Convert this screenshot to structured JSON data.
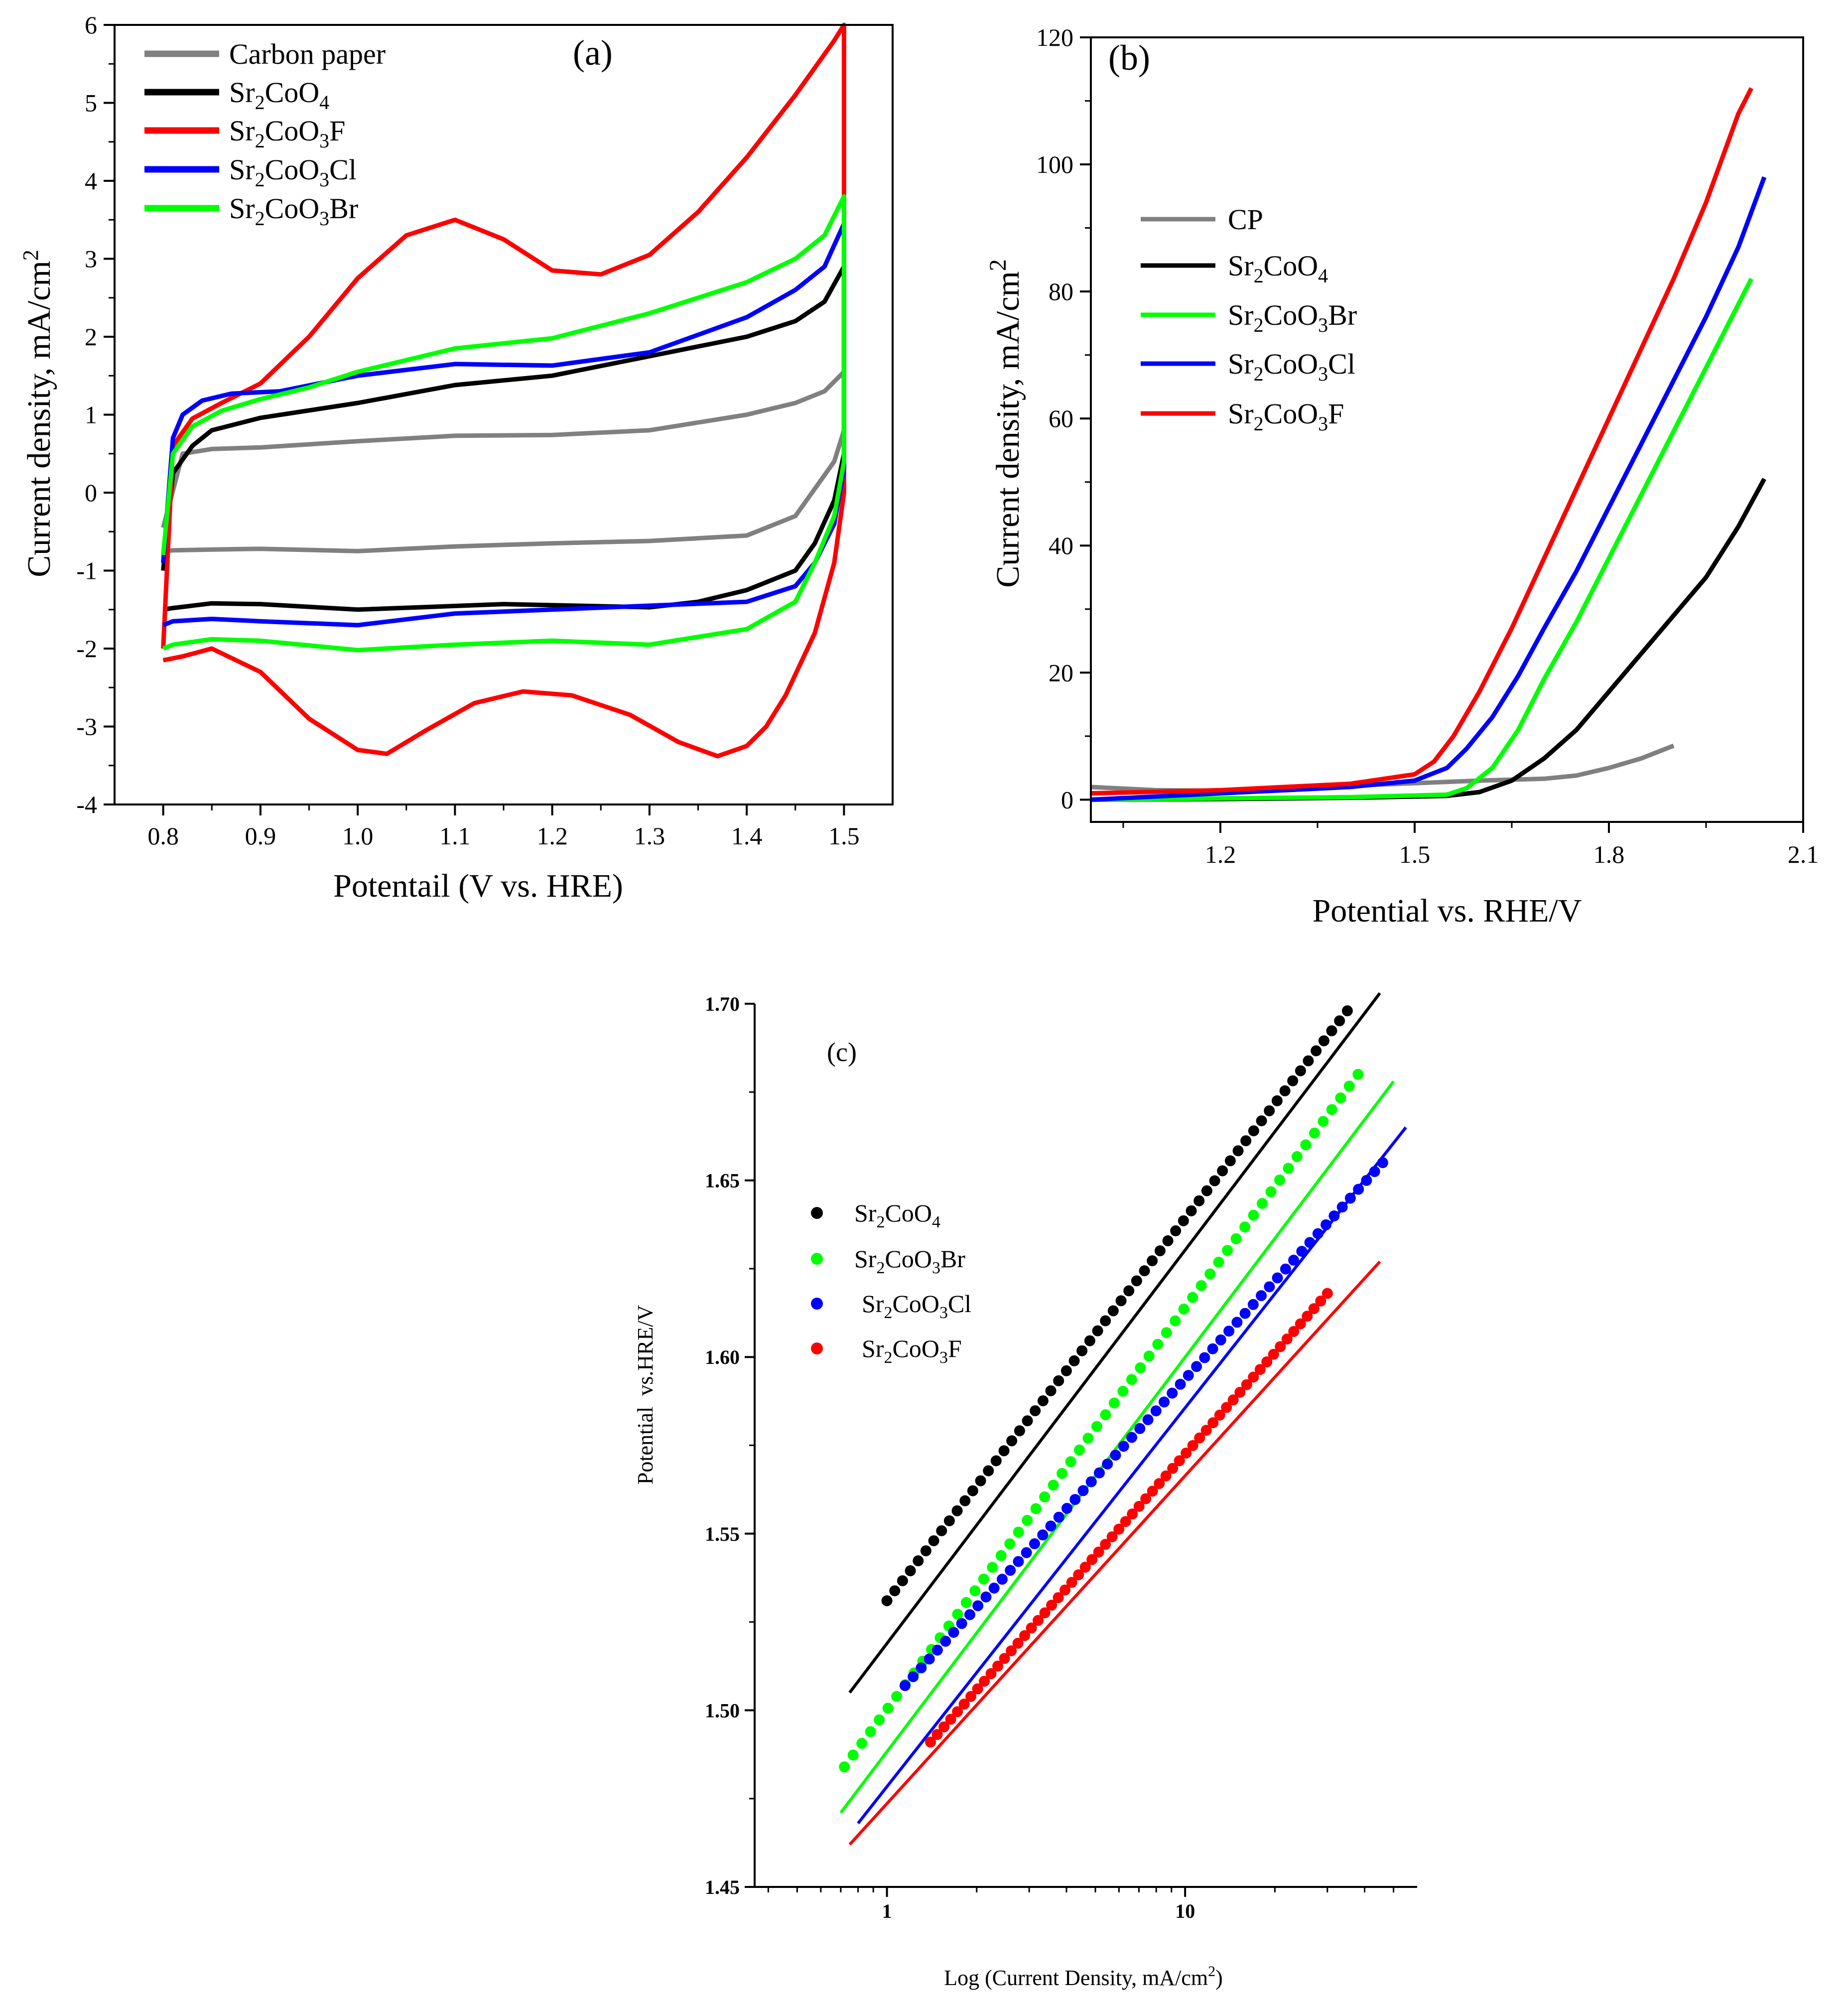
{
  "chart_data": [
    {
      "id": "a",
      "type": "line",
      "panel_label": "(a)",
      "xlabel": "Potentail (V vs. HRE)",
      "ylabel": "Current density, mA/cm²",
      "xlim": [
        0.75,
        1.55
      ],
      "ylim": [
        -4,
        6
      ],
      "xticks": [
        "0.8",
        "0.9",
        "1.0",
        "1.1",
        "1.2",
        "1.3",
        "1.4",
        "1.5"
      ],
      "yticks": [
        "-4",
        "-3",
        "-2",
        "-1",
        "0",
        "1",
        "2",
        "3",
        "4",
        "5",
        "6"
      ],
      "legend_position": "top-left",
      "series": [
        {
          "name": "Carbon paper",
          "color": "#808080",
          "x": [
            0.8,
            0.82,
            0.85,
            0.9,
            1.0,
            1.1,
            1.2,
            1.3,
            1.4,
            1.45,
            1.48,
            1.5,
            1.5,
            1.49,
            1.47,
            1.45,
            1.4,
            1.3,
            1.2,
            1.1,
            1.0,
            0.9,
            0.85,
            0.81,
            0.8
          ],
          "y": [
            -0.45,
            0.5,
            0.56,
            0.58,
            0.66,
            0.73,
            0.74,
            0.8,
            1.0,
            1.15,
            1.3,
            1.55,
            0.8,
            0.4,
            0.05,
            -0.3,
            -0.55,
            -0.62,
            -0.65,
            -0.69,
            -0.75,
            -0.72,
            -0.73,
            -0.74,
            -0.75
          ]
        },
        {
          "name": "Sr₂CoO₄",
          "color": "#000000",
          "x": [
            0.8,
            0.81,
            0.83,
            0.85,
            0.9,
            1.0,
            1.1,
            1.2,
            1.3,
            1.4,
            1.45,
            1.48,
            1.5,
            1.5,
            1.49,
            1.47,
            1.45,
            1.4,
            1.35,
            1.3,
            1.15,
            1.0,
            0.9,
            0.85,
            0.81,
            0.8
          ],
          "y": [
            -1.0,
            0.25,
            0.6,
            0.8,
            0.96,
            1.15,
            1.38,
            1.5,
            1.75,
            2.0,
            2.2,
            2.45,
            2.9,
            0.5,
            -0.1,
            -0.65,
            -1.0,
            -1.25,
            -1.4,
            -1.47,
            -1.43,
            -1.5,
            -1.43,
            -1.42,
            -1.48,
            -1.5
          ]
        },
        {
          "name": "Sr₂CoO₃F",
          "color": "#ff0000",
          "x": [
            0.8,
            0.81,
            0.83,
            0.86,
            0.9,
            0.95,
            1.0,
            1.05,
            1.1,
            1.15,
            1.2,
            1.25,
            1.3,
            1.35,
            1.4,
            1.45,
            1.49,
            1.5,
            1.5,
            1.49,
            1.47,
            1.44,
            1.42,
            1.4,
            1.37,
            1.33,
            1.28,
            1.22,
            1.17,
            1.12,
            1.07,
            1.03,
            1.0,
            0.95,
            0.9,
            0.85,
            0.82,
            0.8
          ],
          "y": [
            -2.0,
            0.6,
            0.95,
            1.15,
            1.4,
            2.0,
            2.75,
            3.3,
            3.5,
            3.25,
            2.85,
            2.8,
            3.05,
            3.6,
            4.3,
            5.1,
            5.8,
            6.0,
            0.0,
            -0.9,
            -1.8,
            -2.6,
            -3.0,
            -3.25,
            -3.38,
            -3.2,
            -2.85,
            -2.6,
            -2.55,
            -2.7,
            -3.05,
            -3.35,
            -3.3,
            -2.9,
            -2.3,
            -2.0,
            -2.1,
            -2.15
          ]
        },
        {
          "name": "Sr₂CoO₃Cl",
          "color": "#0000ff",
          "x": [
            0.8,
            0.81,
            0.82,
            0.84,
            0.87,
            0.92,
            1.0,
            1.1,
            1.2,
            1.3,
            1.4,
            1.45,
            1.48,
            1.5,
            1.5,
            1.49,
            1.47,
            1.45,
            1.4,
            1.3,
            1.2,
            1.1,
            1.0,
            0.9,
            0.85,
            0.81,
            0.8
          ],
          "y": [
            -0.9,
            0.7,
            1.0,
            1.18,
            1.27,
            1.3,
            1.5,
            1.65,
            1.63,
            1.8,
            2.25,
            2.6,
            2.9,
            3.45,
            0.3,
            -0.4,
            -0.9,
            -1.2,
            -1.4,
            -1.45,
            -1.5,
            -1.55,
            -1.7,
            -1.65,
            -1.62,
            -1.65,
            -1.7
          ]
        },
        {
          "name": "Sr₂CoO₃Br",
          "color": "#00ff00",
          "x": [
            0.8,
            0.81,
            0.83,
            0.86,
            0.9,
            0.95,
            1.0,
            1.1,
            1.2,
            1.3,
            1.4,
            1.45,
            1.48,
            1.5,
            1.5,
            1.49,
            1.47,
            1.45,
            1.4,
            1.3,
            1.2,
            1.1,
            1.0,
            0.9,
            0.85,
            0.81,
            0.8
          ],
          "y": [
            -0.8,
            0.5,
            0.85,
            1.05,
            1.2,
            1.35,
            1.55,
            1.85,
            1.98,
            2.3,
            2.7,
            3.0,
            3.3,
            3.8,
            0.4,
            -0.3,
            -0.9,
            -1.4,
            -1.75,
            -1.95,
            -1.9,
            -1.95,
            -2.02,
            -1.9,
            -1.88,
            -1.95,
            -2.0
          ]
        }
      ]
    },
    {
      "id": "b",
      "type": "line",
      "panel_label": "(b)",
      "xlabel": "Potential vs. RHE/V",
      "ylabel": "Current density, mA/cm²",
      "xlim": [
        1.0,
        2.1
      ],
      "ylim": [
        -3.5,
        120
      ],
      "xticks": [
        "1.2",
        "1.5",
        "1.8",
        "2.1"
      ],
      "yticks": [
        "0",
        "20",
        "40",
        "60",
        "80",
        "100",
        "120"
      ],
      "legend_position": "top-left",
      "series": [
        {
          "name": "CP",
          "color": "#808080",
          "x": [
            1.0,
            1.1,
            1.2,
            1.3,
            1.4,
            1.5,
            1.6,
            1.7,
            1.75,
            1.8,
            1.85,
            1.9
          ],
          "y": [
            2.0,
            1.5,
            1.4,
            1.8,
            2.2,
            2.6,
            3.0,
            3.3,
            3.8,
            5.0,
            6.5,
            8.5
          ]
        },
        {
          "name": "Sr₂CoO₄",
          "color": "#000000",
          "x": [
            1.0,
            1.2,
            1.4,
            1.55,
            1.6,
            1.65,
            1.7,
            1.75,
            1.8,
            1.85,
            1.9,
            1.95,
            2.0,
            2.04
          ],
          "y": [
            0.0,
            0.1,
            0.3,
            0.6,
            1.2,
            3.0,
            6.5,
            11.0,
            17.0,
            23.0,
            29.0,
            35.0,
            43.0,
            50.5
          ]
        },
        {
          "name": "Sr₂CoO₃Br",
          "color": "#00ff00",
          "x": [
            1.0,
            1.2,
            1.4,
            1.55,
            1.58,
            1.62,
            1.66,
            1.7,
            1.75,
            1.8,
            1.85,
            1.9,
            1.95,
            2.0,
            2.02
          ],
          "y": [
            0.0,
            0.2,
            0.4,
            0.8,
            1.8,
            5.0,
            11.0,
            19.0,
            28.0,
            38.0,
            48.0,
            58.0,
            68.0,
            78.0,
            82.0
          ]
        },
        {
          "name": "Sr₂CoO₃Cl",
          "color": "#0000ff",
          "x": [
            1.0,
            1.2,
            1.4,
            1.5,
            1.55,
            1.58,
            1.62,
            1.66,
            1.7,
            1.75,
            1.8,
            1.85,
            1.9,
            1.95,
            2.0,
            2.04
          ],
          "y": [
            0.0,
            1.0,
            2.0,
            3.0,
            5.0,
            8.0,
            13.0,
            19.5,
            27.0,
            36.0,
            46.0,
            56.0,
            66.0,
            76.0,
            87.0,
            98.0
          ]
        },
        {
          "name": "Sr₂CoO₃F",
          "color": "#ff0000",
          "x": [
            1.0,
            1.2,
            1.4,
            1.5,
            1.53,
            1.56,
            1.6,
            1.65,
            1.7,
            1.75,
            1.8,
            1.85,
            1.9,
            1.95,
            2.0,
            2.02
          ],
          "y": [
            1.0,
            1.5,
            2.5,
            4.0,
            6.0,
            10.0,
            17.0,
            27.0,
            38.0,
            49.0,
            60.0,
            71.0,
            82.0,
            94.0,
            108.0,
            112.0
          ]
        }
      ]
    },
    {
      "id": "c",
      "type": "scatter",
      "panel_label": "(c)",
      "xlabel": "Log (Current Density, mA/cm²)",
      "ylabel": "Potential  vs.HRE/V",
      "x_scale": "log",
      "xlim": [
        0.36,
        60
      ],
      "ylim": [
        1.45,
        1.7
      ],
      "xticks": [
        "1",
        "10"
      ],
      "yticks": [
        "1.45",
        "1.50",
        "1.55",
        "1.60",
        "1.65",
        "1.70"
      ],
      "legend_position": "middle-left",
      "series": [
        {
          "name": "Sr₂CoO₄",
          "color": "#000000",
          "x_start": 1.0,
          "x_end": 35,
          "y_start": 1.531,
          "y_end": 1.698,
          "fit_x": [
            0.75,
            45
          ],
          "fit_y": [
            1.505,
            1.703
          ]
        },
        {
          "name": "Sr₂CoO₃Br",
          "color": "#00ff00",
          "x_start": 0.72,
          "x_end": 38,
          "y_start": 1.484,
          "y_end": 1.68,
          "fit_x": [
            0.7,
            50
          ],
          "fit_y": [
            1.471,
            1.678
          ]
        },
        {
          "name": "Sr₂CoO₃Cl",
          "color": "#0000ff",
          "x_start": 1.15,
          "x_end": 46,
          "y_start": 1.507,
          "y_end": 1.655,
          "fit_x": [
            0.8,
            55
          ],
          "fit_y": [
            1.468,
            1.665
          ]
        },
        {
          "name": "Sr₂CoO₃F",
          "color": "#ff0000",
          "x_start": 1.4,
          "x_end": 30,
          "y_start": 1.491,
          "y_end": 1.618,
          "fit_x": [
            0.75,
            45
          ],
          "fit_y": [
            1.462,
            1.627
          ]
        }
      ]
    }
  ]
}
